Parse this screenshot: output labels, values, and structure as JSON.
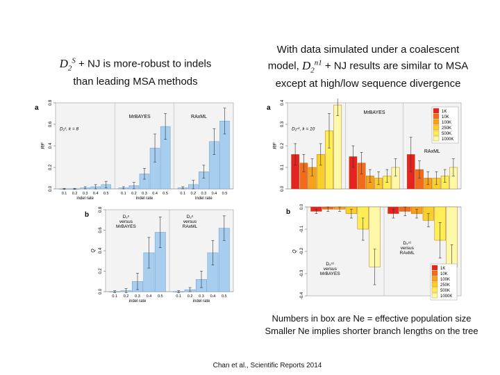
{
  "headings": {
    "left": {
      "symbol": "D",
      "sub": "2",
      "sup": "S",
      "rest_line1": " + NJ is more-robust to indels",
      "line2": "than leading MSA methods"
    },
    "right": {
      "line1": "With data simulated under a coalescent",
      "prefix2": "model, ",
      "symbol": "D",
      "sub": "2",
      "sup": "n1",
      "rest_line2": " + NJ results are similar to MSA",
      "line3": "except at high/low sequence divergence"
    }
  },
  "caption": {
    "line1": "Numbers in box are Ne = effective population size",
    "line2": "Smaller Ne implies shorter branch lengths on the tree"
  },
  "citation": "Chan et al., Scientific Reports 2014",
  "colors": {
    "blue_bar": "#a7cdef",
    "blue_edge": "#5a8fc4",
    "panel_bg": "#f3f3f3",
    "k1": "#e52421",
    "k10": "#f26a1b",
    "k100": "#f7a11a",
    "k250": "#fbcf2b",
    "k500": "#fdee55",
    "k1000": "#fdf9a8"
  },
  "chart_data": [
    {
      "type": "bar",
      "panel": "a",
      "side": "left",
      "metric": "RF",
      "categories": [
        "0.1",
        "0.2",
        "0.3",
        "0.4",
        "0.5"
      ],
      "xlabel": "indel rate",
      "ylim": [
        0,
        0.8
      ],
      "yticks": [
        "0.0",
        "0.2",
        "0.4",
        "0.6",
        "0.8"
      ],
      "inset_label": "D₂ˢ, k = 8",
      "groups": [
        {
          "name": "",
          "values": [
            0.0,
            0.0,
            0.01,
            0.02,
            0.04
          ],
          "errors": [
            0.005,
            0.005,
            0.01,
            0.02,
            0.03
          ]
        },
        {
          "name": "MrBAYES",
          "values": [
            0.01,
            0.03,
            0.14,
            0.38,
            0.58
          ],
          "errors": [
            0.01,
            0.03,
            0.05,
            0.13,
            0.12
          ]
        },
        {
          "name": "RAxML",
          "values": [
            0.01,
            0.04,
            0.16,
            0.44,
            0.63
          ],
          "errors": [
            0.01,
            0.04,
            0.06,
            0.12,
            0.12
          ]
        }
      ]
    },
    {
      "type": "bar",
      "panel": "b",
      "side": "left",
      "metric": "Q",
      "categories": [
        "0.1",
        "0.2",
        "0.3",
        "0.4",
        "0.5"
      ],
      "xlabel": "indel rate",
      "ylim": [
        0,
        0.8
      ],
      "yticks": [
        "0.0",
        "0.2",
        "0.4",
        "0.6",
        "0.8"
      ],
      "groups": [
        {
          "name": "D₂ˢ versus MrBAYES",
          "values": [
            0.0,
            0.01,
            0.1,
            0.38,
            0.58
          ],
          "errors": [
            0.01,
            0.02,
            0.08,
            0.15,
            0.15
          ]
        },
        {
          "name": "D₂ˢ versus RAxML",
          "values": [
            0.0,
            0.02,
            0.12,
            0.38,
            0.62
          ],
          "errors": [
            0.01,
            0.02,
            0.08,
            0.12,
            0.12
          ]
        }
      ]
    },
    {
      "type": "bar",
      "panel": "a",
      "side": "right",
      "metric": "RF",
      "legend": [
        "1K",
        "10K",
        "100K",
        "250K",
        "500K",
        "1000K"
      ],
      "ylim": [
        0,
        0.4
      ],
      "yticks": [
        "0.0",
        "0.1",
        "0.2",
        "0.3",
        "0.4"
      ],
      "inset_label": "D₂ⁿ¹, k = 10",
      "groups": [
        {
          "name": "",
          "values": [
            0.16,
            0.12,
            0.1,
            0.16,
            0.27,
            0.39
          ],
          "errors": [
            0.05,
            0.04,
            0.04,
            0.05,
            0.08,
            0.05
          ]
        },
        {
          "name": "MrBAYES",
          "values": [
            0.15,
            0.12,
            0.06,
            0.05,
            0.06,
            0.1
          ],
          "errors": [
            0.05,
            0.05,
            0.03,
            0.03,
            0.03,
            0.04
          ]
        },
        {
          "name": "RAxML",
          "values": [
            0.16,
            0.09,
            0.05,
            0.05,
            0.06,
            0.1
          ],
          "errors": [
            0.08,
            0.04,
            0.03,
            0.03,
            0.03,
            0.04
          ]
        }
      ]
    },
    {
      "type": "bar",
      "panel": "b",
      "side": "right",
      "metric": "Q",
      "legend": [
        "1K",
        "10K",
        "100K",
        "250K",
        "500K",
        "1000K"
      ],
      "ylim": [
        -0.4,
        0.0
      ],
      "yticks": [
        "0.0",
        "-0.1",
        "-0.2",
        "-0.3",
        "-0.4"
      ],
      "groups": [
        {
          "name": "D₂ⁿ¹ versus MrBAYES",
          "values": [
            -0.02,
            -0.01,
            -0.01,
            -0.03,
            -0.1,
            -0.27
          ],
          "errors": [
            0.01,
            0.01,
            0.01,
            0.02,
            0.05,
            0.08
          ]
        },
        {
          "name": "D₂ⁿ¹ versus RAxML",
          "values": [
            -0.03,
            -0.02,
            -0.03,
            -0.06,
            -0.15,
            -0.27
          ],
          "errors": [
            0.02,
            0.02,
            0.02,
            0.03,
            0.08,
            0.1
          ]
        }
      ]
    }
  ]
}
